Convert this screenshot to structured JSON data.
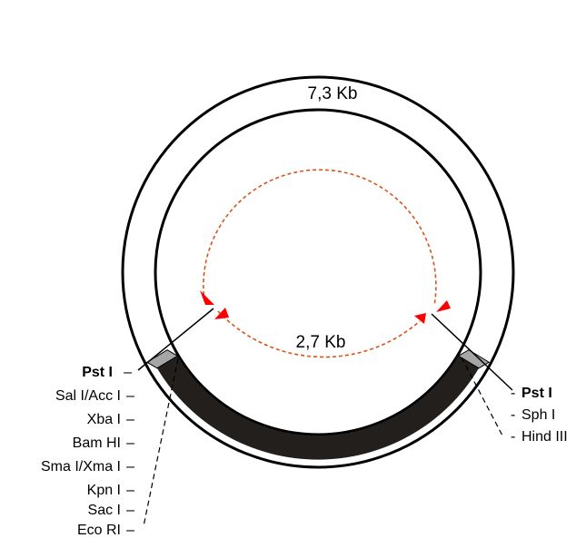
{
  "plasmid": {
    "large_fragment_label": "7,3 Kb",
    "small_fragment_label": "2,7 Kb"
  },
  "left_sites": {
    "title": "Pst I",
    "items": [
      "Sal I/Acc I",
      "Xba I",
      "Bam HI",
      "Sma I/Xma I",
      "Kpn I",
      "Sac I",
      "Eco RI"
    ]
  },
  "right_sites": {
    "title": "Pst I",
    "items": [
      "Sph I",
      "Hind III"
    ]
  },
  "colors": {
    "ring": "#000000",
    "insert": "#231f1c",
    "site_box": "#a6a6a6",
    "arc": "#d9541a",
    "arrow": "#ff0000"
  }
}
